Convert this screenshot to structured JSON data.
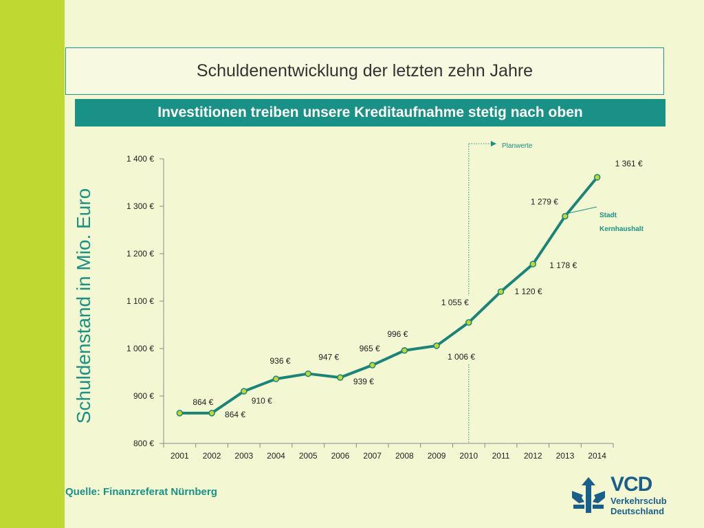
{
  "slide": {
    "title": "Schuldenentwicklung der letzten zehn Jahre",
    "subtitle": "Investitionen treiben unsere Kreditaufnahme stetig nach oben",
    "source": "Quelle: Finanzreferat Nürnberg"
  },
  "logo": {
    "name": "VCD",
    "line1": "Verkehrsclub",
    "line2": "Deutschland",
    "icon": "vcd-tree-icon",
    "color": "#1a5f8a"
  },
  "colors": {
    "accent": "#1a9187",
    "line": "#1a8479",
    "marker": "#bfd832"
  },
  "chart_data": {
    "type": "line",
    "title": "",
    "ylabel": "Schuldenstand in Mio. Euro",
    "xlabel": "",
    "ylim": [
      800,
      1400
    ],
    "yticks": [
      800,
      900,
      1000,
      1100,
      1200,
      1300,
      1400
    ],
    "ytick_labels": [
      "800 €",
      "900 €",
      "1 000 €",
      "1 100 €",
      "1 200 €",
      "1 300 €",
      "1 400 €"
    ],
    "x": [
      "2001",
      "2002",
      "2003",
      "2004",
      "2005",
      "2006",
      "2007",
      "2008",
      "2009",
      "2010",
      "2011",
      "2012",
      "2013",
      "2014"
    ],
    "series": [
      {
        "name": "Stadt Kernhaushalt",
        "values": [
          864,
          864,
          910,
          936,
          947,
          939,
          965,
          996,
          1006,
          1055,
          1120,
          1178,
          1279,
          1361
        ],
        "data_labels": [
          "864 €",
          "864 €",
          "910 €",
          "936 €",
          "947 €",
          "939 €",
          "965 €",
          "996 €",
          "1 006 €",
          "1 055 €",
          "1 120 €",
          "1 178 €",
          "1 279 €",
          "1 361 €"
        ]
      }
    ],
    "legend_lines": [
      "Stadt",
      "Kernhaushalt"
    ],
    "annotation": {
      "text": "Planwerte",
      "from_x": "2010"
    },
    "grid": false
  }
}
